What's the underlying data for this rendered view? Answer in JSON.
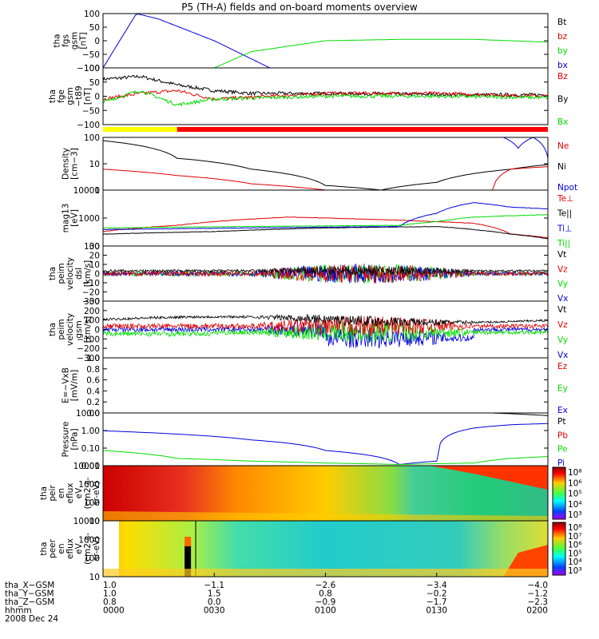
{
  "title": "P5 (TH-A) fields and on-board moments overview",
  "colors": {
    "black": "#000000",
    "red": "#e00000",
    "green": "#00dd00",
    "blue": "#0000dd",
    "yellow": "#ffff00",
    "bar_red": "#ff0000"
  },
  "panels": [
    {
      "id": "fgs",
      "ylabel": [
        "tha",
        "fgs",
        "gsm",
        "[nT]"
      ],
      "ticks": [
        "100",
        "50",
        "0",
        "−50",
        "−100"
      ],
      "legend": [
        {
          "label": "Bt",
          "color": "black"
        },
        {
          "label": "bz",
          "color": "red"
        },
        {
          "label": "by",
          "color": "green"
        },
        {
          "label": "bx",
          "color": "blue"
        }
      ]
    },
    {
      "id": "fge",
      "ylabel": [
        "tha",
        "fge",
        "gsm",
        "−t89",
        "[nT]"
      ],
      "ticks": [
        "100",
        "50",
        "0",
        "−50",
        "−100"
      ],
      "legend": [
        {
          "label": "Bz",
          "color": "red"
        },
        {
          "label": "By",
          "color": "black"
        },
        {
          "label": "Bx",
          "color": "green"
        }
      ]
    },
    {
      "id": "density",
      "ylabel": [
        "Density",
        "[cm−3]"
      ],
      "ticks": [
        "100",
        "10",
        "1"
      ],
      "legend": [
        {
          "label": "Ne",
          "color": "red"
        },
        {
          "label": "Ni",
          "color": "black"
        },
        {
          "label": "Npot",
          "color": "blue"
        }
      ]
    },
    {
      "id": "temp",
      "ylabel": [
        "mag13",
        "[eV]"
      ],
      "ticks": [
        "10000",
        "1000",
        "100"
      ],
      "legend": [
        {
          "label": "Te⊥",
          "color": "red"
        },
        {
          "label": "Te||",
          "color": "black"
        },
        {
          "label": "Ti⊥",
          "color": "blue"
        },
        {
          "label": "Ti||",
          "color": "green"
        }
      ]
    },
    {
      "id": "peim",
      "ylabel": [
        "tha",
        "peim",
        "velocity",
        "dsl",
        "[km/s]"
      ],
      "ticks": [
        "30",
        "20",
        "10",
        "0",
        "−10",
        "−20",
        "−30"
      ],
      "legend": [
        {
          "label": "Vt",
          "color": "black"
        },
        {
          "label": "Vz",
          "color": "red"
        },
        {
          "label": "Vy",
          "color": "green"
        },
        {
          "label": "Vx",
          "color": "blue"
        }
      ]
    },
    {
      "id": "peir",
      "ylabel": [
        "tha",
        "peim",
        "velocity",
        "gsm",
        "[km/s]"
      ],
      "ticks": [
        "300",
        "200",
        "100",
        "0",
        "−100",
        "−200",
        "−300"
      ],
      "legend": [
        {
          "label": "Vt",
          "color": "black"
        },
        {
          "label": "Vz",
          "color": "red"
        },
        {
          "label": "Vy",
          "color": "green"
        },
        {
          "label": "Vx",
          "color": "blue"
        }
      ]
    },
    {
      "id": "efield",
      "ylabel": [
        "E=−VxB",
        "[mV/m]"
      ],
      "ticks": [
        "1.0",
        "0.8",
        "0.6",
        "0.4",
        "0.2",
        "0.0"
      ],
      "legend": [
        {
          "label": "Ez",
          "color": "red"
        },
        {
          "label": "Ey",
          "color": "green"
        },
        {
          "label": "Ex",
          "color": "blue"
        }
      ]
    },
    {
      "id": "pressure",
      "ylabel": [
        "Pressure",
        "[nPa]"
      ],
      "ticks": [
        "10.00",
        "1.00",
        "0.10",
        "0.01"
      ],
      "legend": [
        {
          "label": "Pt",
          "color": "black"
        },
        {
          "label": "Pb",
          "color": "red"
        },
        {
          "label": "Pe",
          "color": "green"
        },
        {
          "label": "Pi",
          "color": "blue"
        }
      ]
    },
    {
      "id": "ion_spec",
      "ylabel": [
        "tha",
        "peir",
        "en",
        "eflux",
        "eV",
        "(cm2-s-",
        "sr-eV)"
      ],
      "ticks": [
        "10000",
        "1000",
        "100",
        "10"
      ],
      "cbar": [
        "10⁸",
        "10⁶",
        "10⁵",
        "10⁴",
        "10³"
      ]
    },
    {
      "id": "ele_spec",
      "ylabel": [
        "tha",
        "peer",
        "en",
        "eflux",
        "eV",
        "(cm2-s-",
        "sr-eV)"
      ],
      "ticks": [
        "10000",
        "1000",
        "100",
        "10"
      ],
      "cbar": [
        "10⁸",
        "10⁷",
        "10⁶",
        "10⁵",
        "10⁴",
        "10³"
      ]
    }
  ],
  "ephemeris": {
    "rows": [
      {
        "label": "tha_X−GSM",
        "values": [
          "1.0",
          "−1.1",
          "−2.6",
          "−3.4",
          "−4.0"
        ]
      },
      {
        "label": "tha_Y−GSM",
        "values": [
          "1.0",
          "1.5",
          "0.8",
          "−0.2",
          "−1.2"
        ]
      },
      {
        "label": "tha_Z−GSM",
        "values": [
          "0.8",
          "0.0",
          "−0.9",
          "−1.7",
          "−2.3"
        ]
      },
      {
        "label": "hhmm",
        "values": [
          "0000",
          "0030",
          "0100",
          "0130",
          "0200"
        ]
      }
    ],
    "date": "2008 Dec 24"
  },
  "chart_data": {
    "type": "line",
    "title": "P5 (TH-A) fields and on-board moments overview",
    "x": [
      "0000",
      "0030",
      "0100",
      "0130",
      "0200"
    ],
    "xlabel": "hhmm",
    "panels": [
      {
        "name": "tha fgs gsm [nT]",
        "ylim": [
          -100,
          100
        ],
        "series": [
          {
            "name": "bx",
            "x": [
              0,
              9,
              15,
              30,
              45,
              60,
              75
            ],
            "values": [
              -100,
              100,
              80,
              0,
              -100,
              -100,
              -100
            ]
          },
          {
            "name": "by",
            "x": [
              30,
              40,
              60,
              80,
              100,
              120
            ],
            "values": [
              -100,
              -40,
              0,
              5,
              5,
              -5
            ]
          }
        ]
      },
      {
        "name": "tha fge gsm −t89 [nT]",
        "ylim": [
          -100,
          100
        ],
        "series": [
          {
            "name": "By",
            "x": [
              0,
              10,
              20,
              30,
              40,
              60,
              80,
              100,
              120
            ],
            "values": [
              60,
              70,
              40,
              20,
              10,
              10,
              8,
              5,
              5
            ]
          },
          {
            "name": "Bz",
            "x": [
              0,
              10,
              20,
              30,
              60,
              90,
              120
            ],
            "values": [
              -10,
              10,
              20,
              -10,
              10,
              10,
              0
            ]
          },
          {
            "name": "Bx",
            "x": [
              0,
              10,
              20,
              30,
              60,
              90,
              120
            ],
            "values": [
              -20,
              20,
              -30,
              -10,
              0,
              0,
              -5
            ]
          }
        ]
      },
      {
        "name": "Density [cm−3]",
        "scale": "log",
        "ylim": [
          0.3,
          100
        ],
        "series": [
          {
            "name": "Ni",
            "x": [
              0,
              20,
              40,
              60,
              75,
              90,
              110,
              120
            ],
            "values": [
              70,
              10,
              3,
              0.5,
              0.3,
              0.7,
              3,
              5
            ]
          },
          {
            "name": "Ne",
            "x": [
              0,
              20,
              40,
              60,
              90,
              105,
              110,
              120
            ],
            "values": [
              3,
              1.5,
              0.6,
              0.3,
              0.25,
              0.3,
              3,
              4
            ]
          },
          {
            "name": "Npot",
            "x": [
              108,
              112,
              116,
              120
            ],
            "values": [
              100,
              30,
              100,
              10
            ]
          }
        ]
      },
      {
        "name": "mag13 [eV]",
        "scale": "log",
        "ylim": [
          40,
          20000
        ],
        "series": [
          {
            "name": "Te⊥",
            "x": [
              0,
              20,
              50,
              80,
              100,
              110,
              120
            ],
            "values": [
              200,
              400,
              1000,
              700,
              500,
              150,
              100
            ]
          },
          {
            "name": "Te||",
            "x": [
              0,
              30,
              60,
              90,
              110,
              120
            ],
            "values": [
              150,
              200,
              300,
              350,
              150,
              90
            ]
          },
          {
            "name": "Ti⊥",
            "x": [
              0,
              40,
              80,
              90,
              100,
              110,
              120
            ],
            "values": [
              250,
              300,
              350,
              1500,
              5000,
              3000,
              2500
            ]
          },
          {
            "name": "Ti||",
            "x": [
              0,
              40,
              80,
              90,
              100,
              120
            ],
            "values": [
              300,
              350,
              400,
              600,
              1000,
              1300
            ]
          }
        ]
      },
      {
        "name": "tha peim velocity dsl [km/s]",
        "ylim": [
          -30,
          30
        ]
      },
      {
        "name": "tha peim velocity gsm [km/s]",
        "ylim": [
          -300,
          300
        ]
      },
      {
        "name": "E=−VxB [mV/m]",
        "ylim": [
          0,
          1
        ]
      },
      {
        "name": "Pressure [nPa]",
        "scale": "log",
        "ylim": [
          0.01,
          30
        ],
        "series": [
          {
            "name": "Pi",
            "x": [
              0,
              20,
              40,
              60,
              80,
              90,
              100,
              110,
              120
            ],
            "values": [
              2,
              1.2,
              0.5,
              0.1,
              0.012,
              0.02,
              3,
              5,
              6
            ]
          },
          {
            "name": "Pe",
            "x": [
              0,
              20,
              40,
              60,
              80,
              100,
              110,
              120
            ],
            "values": [
              0.1,
              0.03,
              0.02,
              0.015,
              0.012,
              0.015,
              0.03,
              0.04
            ]
          },
          {
            "name": "Pt",
            "x": [
              105,
              120
            ],
            "values": [
              30,
              20
            ]
          }
        ]
      }
    ]
  }
}
